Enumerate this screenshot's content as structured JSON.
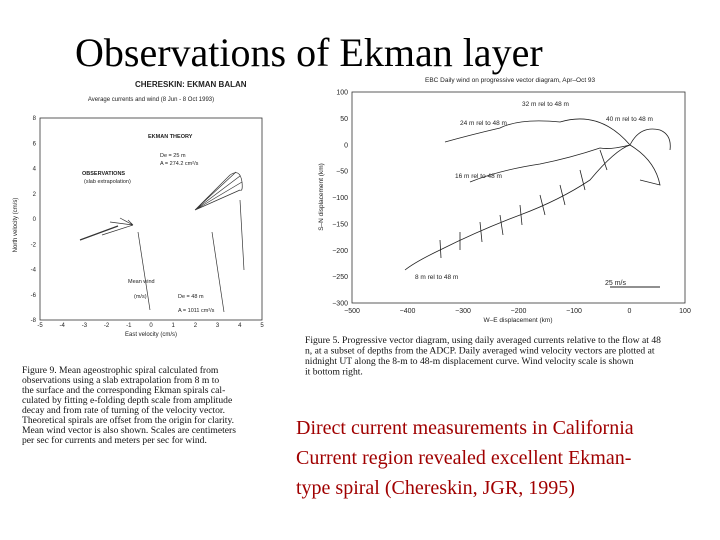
{
  "title": "Observations of Ekman layer",
  "left_figure": {
    "header": "CHERESKIN: EKMAN BALAN",
    "plot_title": "Average currents and wind (8 Jun - 8 Oct 1993)",
    "y_label": "North velocity (cm/s)",
    "x_label": "East velocity (cm/s)",
    "y_ticks": [
      "8",
      "6",
      "4",
      "2",
      "0",
      "-2",
      "-4",
      "-6",
      "-8"
    ],
    "x_ticks": [
      "-5",
      "-4",
      "-3",
      "-2",
      "-1",
      "0",
      "1",
      "2",
      "3",
      "4",
      "5"
    ],
    "annotations": [
      "EKMAN THEORY",
      "De = 25 m",
      "A = 274.2 cm²/s",
      "OBSERVATIONS",
      "(slab extrapolation)",
      "Mean wind",
      "(m/s)",
      "De = 48 m",
      "A = 1011 cm²/s"
    ],
    "caption": [
      "Figure 9.  Mean ageostrophic spiral calculated from",
      "observations using a slab extrapolation from 8 m to",
      "the surface and the corresponding Ekman spirals cal-",
      "culated by fitting e-folding depth scale from amplitude",
      "decay and from rate of turning of the velocity vector.",
      "Theoretical spirals are offset from the origin for clarity.",
      "Mean wind vector is also shown. Scales are centimeters",
      "per sec for currents and meters per sec for wind."
    ]
  },
  "right_figure": {
    "plot_title": "EBC Daily wind on progressive vector diagram, Apr–Oct 93",
    "y_label": "S–N displacement (km)",
    "x_label": "W–E displacement (km)",
    "y_ticks": [
      "100",
      "50",
      "0",
      "−50",
      "−100",
      "−150",
      "−200",
      "−250",
      "−300"
    ],
    "x_ticks": [
      "−500",
      "−400",
      "−300",
      "−200",
      "−100",
      "0",
      "100"
    ],
    "curve_labels": [
      "32 m rel to 48 m",
      "24 m rel to 48 m",
      "40 m rel to 48 m",
      "16 m rel to 48 m",
      "8 m rel to 48 m",
      "25 m/s"
    ],
    "caption": [
      "Figure 5.  Progressive vector diagram, using daily averaged currents relative to the flow at 48",
      "n, at a subset of depths from the ADCP. Daily averaged wind velocity vectors are plotted at",
      "nidnight UT along the 8-m to 48-m displacement curve. Wind velocity scale is shown",
      "it bottom right."
    ]
  },
  "body_text": [
    "Direct current measurements in California",
    "Current region revealed excellent Ekman-",
    "type spiral (Chereskin, JGR, 1995)"
  ]
}
